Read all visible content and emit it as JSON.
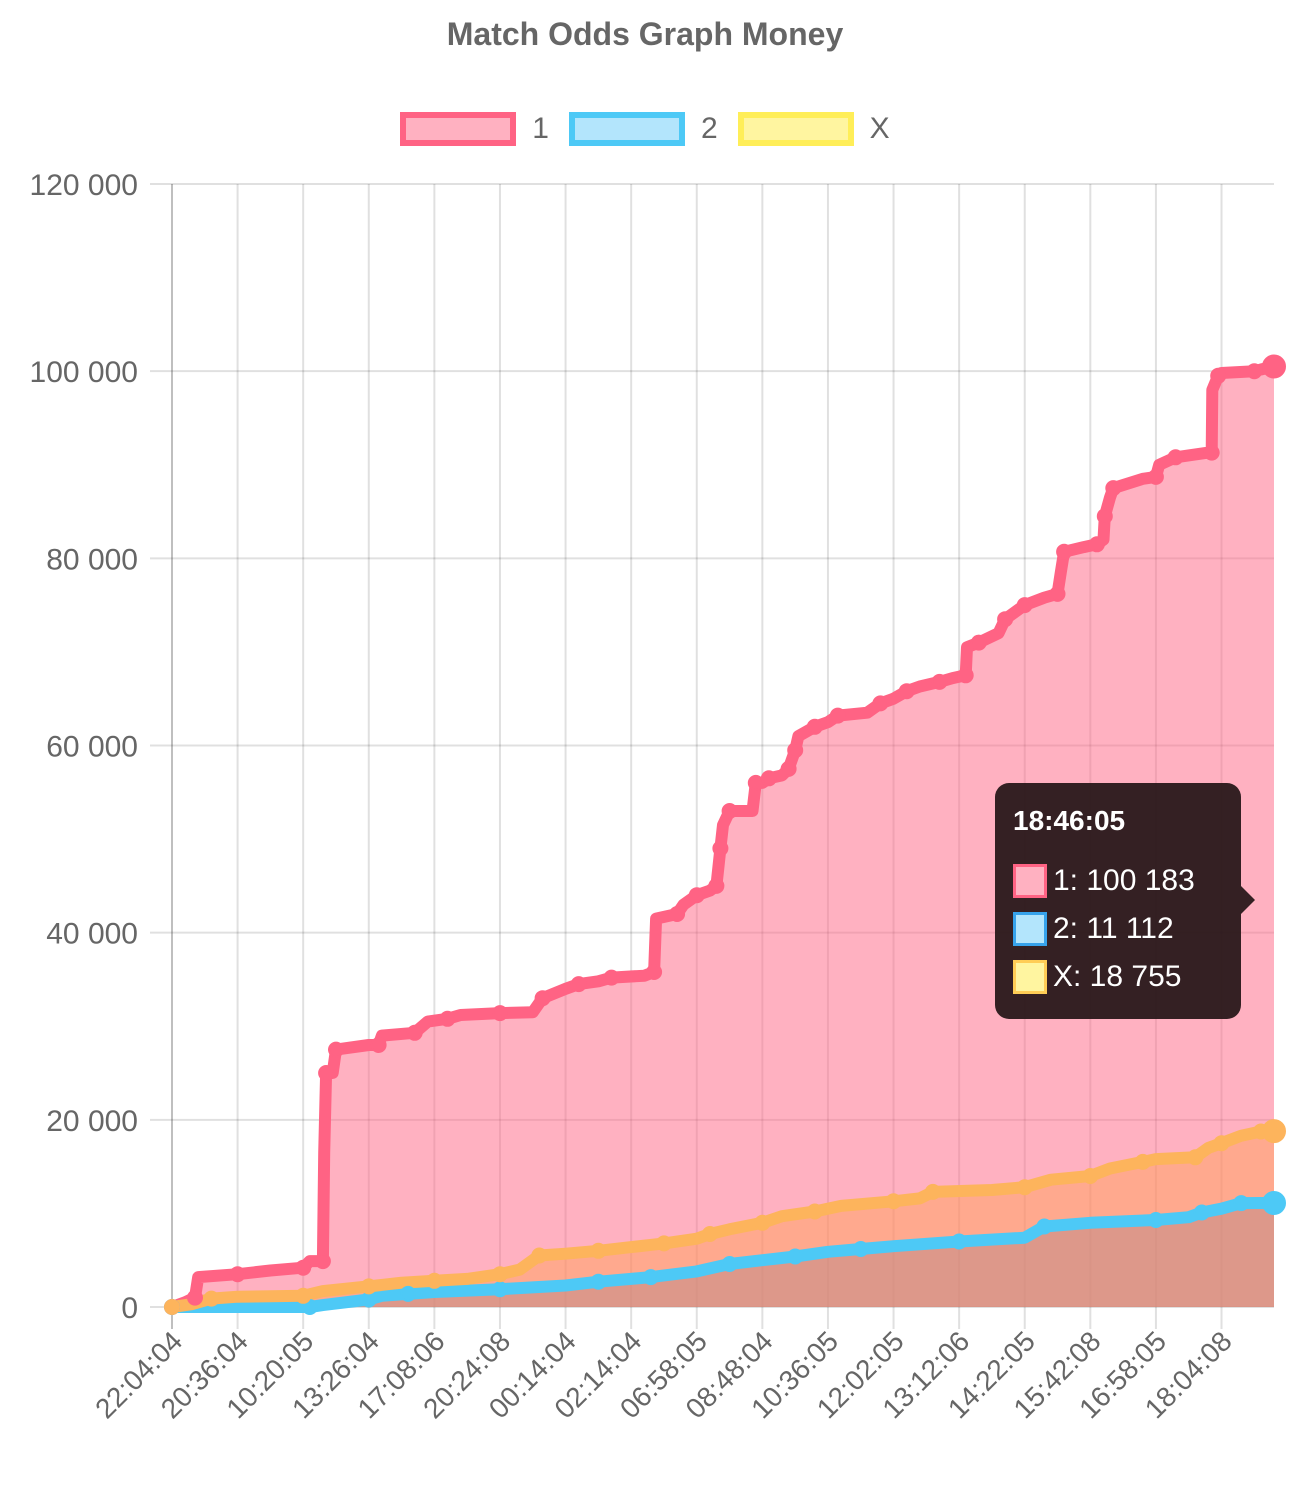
{
  "chart_data": {
    "type": "area",
    "title": "Match Odds Graph Money",
    "xlabel": "",
    "ylabel": "",
    "ylim": [
      0,
      120000
    ],
    "y_ticks": [
      0,
      20000,
      40000,
      60000,
      80000,
      100000,
      120000
    ],
    "y_tick_labels": [
      "0",
      "20 000",
      "40 000",
      "60 000",
      "80 000",
      "100 000",
      "120 000"
    ],
    "x_tick_labels": [
      "22:04:04",
      "20:36:04",
      "10:20:05",
      "13:26:04",
      "17:08:06",
      "20:24:08",
      "00:14:04",
      "02:14:04",
      "06:58:05",
      "08:48:04",
      "10:36:05",
      "12:02:05",
      "13:12:06",
      "14:22:05",
      "15:42:08",
      "16:58:05",
      "18:04:08"
    ],
    "grid": true,
    "legend_position": "top",
    "x_index_max": 16.8,
    "series": [
      {
        "name": "1",
        "border_color": "#ff6384",
        "fill_color": "#ffb1c1",
        "points": [
          [
            0,
            0
          ],
          [
            0.2,
            500
          ],
          [
            0.35,
            1000
          ],
          [
            0.4,
            3200
          ],
          [
            1.0,
            3500
          ],
          [
            1.5,
            3900
          ],
          [
            2.0,
            4200
          ],
          [
            2.1,
            4900
          ],
          [
            2.3,
            4900
          ],
          [
            2.32,
            16500
          ],
          [
            2.35,
            25000
          ],
          [
            2.45,
            25000
          ],
          [
            2.5,
            27500
          ],
          [
            3.0,
            28000
          ],
          [
            3.15,
            28000
          ],
          [
            3.2,
            29000
          ],
          [
            3.7,
            29300
          ],
          [
            3.9,
            30500
          ],
          [
            4.2,
            30800
          ],
          [
            4.4,
            31200
          ],
          [
            5.0,
            31400
          ],
          [
            5.5,
            31500
          ],
          [
            5.65,
            33000
          ],
          [
            6.0,
            34000
          ],
          [
            6.2,
            34500
          ],
          [
            6.5,
            34800
          ],
          [
            6.7,
            35200
          ],
          [
            7.2,
            35400
          ],
          [
            7.35,
            35800
          ],
          [
            7.38,
            41500
          ],
          [
            7.7,
            42000
          ],
          [
            7.8,
            43000
          ],
          [
            8.0,
            44000
          ],
          [
            8.2,
            44500
          ],
          [
            8.3,
            45000
          ],
          [
            8.33,
            47000
          ],
          [
            8.36,
            49000
          ],
          [
            8.4,
            51500
          ],
          [
            8.5,
            53000
          ],
          [
            8.85,
            53000
          ],
          [
            8.9,
            56000
          ],
          [
            9.0,
            56000
          ],
          [
            9.1,
            56500
          ],
          [
            9.3,
            56800
          ],
          [
            9.4,
            57500
          ],
          [
            9.45,
            58500
          ],
          [
            9.5,
            59500
          ],
          [
            9.55,
            61000
          ],
          [
            9.8,
            62000
          ],
          [
            10.0,
            62500
          ],
          [
            10.15,
            63200
          ],
          [
            10.6,
            63500
          ],
          [
            10.8,
            64500
          ],
          [
            11.0,
            65000
          ],
          [
            11.2,
            65800
          ],
          [
            11.4,
            66300
          ],
          [
            11.7,
            66800
          ],
          [
            11.9,
            67200
          ],
          [
            12.1,
            67500
          ],
          [
            12.12,
            70500
          ],
          [
            12.3,
            71000
          ],
          [
            12.6,
            72000
          ],
          [
            12.7,
            73500
          ],
          [
            12.9,
            74500
          ],
          [
            13.0,
            75000
          ],
          [
            13.3,
            75800
          ],
          [
            13.5,
            76200
          ],
          [
            13.55,
            78500
          ],
          [
            13.6,
            80700
          ],
          [
            13.9,
            81200
          ],
          [
            14.1,
            81500
          ],
          [
            14.2,
            82000
          ],
          [
            14.22,
            84500
          ],
          [
            14.3,
            86500
          ],
          [
            14.35,
            87500
          ],
          [
            14.8,
            88500
          ],
          [
            15.0,
            88700
          ],
          [
            15.05,
            90000
          ],
          [
            15.3,
            90800
          ],
          [
            15.8,
            91300
          ],
          [
            15.85,
            91300
          ],
          [
            15.86,
            98000
          ],
          [
            15.95,
            99500
          ],
          [
            16.0,
            99800
          ],
          [
            16.5,
            100000
          ],
          [
            16.6,
            100183
          ],
          [
            16.8,
            100500
          ]
        ]
      },
      {
        "name": "2",
        "border_color": "#36a2eb",
        "fill_color": "#9ad0f5",
        "line_color": "#4dc9f6",
        "fill_visible": "#a8a0c8",
        "points": [
          [
            0,
            0
          ],
          [
            1.5,
            0
          ],
          [
            2.1,
            0
          ],
          [
            2.3,
            200
          ],
          [
            3.0,
            800
          ],
          [
            3.2,
            1200
          ],
          [
            3.6,
            1400
          ],
          [
            4.0,
            1600
          ],
          [
            5.0,
            1900
          ],
          [
            6.0,
            2300
          ],
          [
            6.5,
            2700
          ],
          [
            7.0,
            3000
          ],
          [
            7.3,
            3200
          ],
          [
            8.0,
            3800
          ],
          [
            8.5,
            4600
          ],
          [
            9.0,
            5000
          ],
          [
            9.5,
            5400
          ],
          [
            10.0,
            5900
          ],
          [
            10.5,
            6200
          ],
          [
            11.0,
            6500
          ],
          [
            12.0,
            7000
          ],
          [
            13.0,
            7400
          ],
          [
            13.3,
            8600
          ],
          [
            14.0,
            9000
          ],
          [
            15.0,
            9300
          ],
          [
            15.5,
            9600
          ],
          [
            15.7,
            10100
          ],
          [
            16.0,
            10500
          ],
          [
            16.3,
            11100
          ],
          [
            16.6,
            11112
          ],
          [
            16.8,
            11112
          ]
        ]
      },
      {
        "name": "X",
        "border_color": "#ffcd56",
        "fill_color": "#ffe6aa",
        "line_color": "#fdb45c",
        "points": [
          [
            0,
            0
          ],
          [
            0.3,
            300
          ],
          [
            0.6,
            900
          ],
          [
            1.0,
            1100
          ],
          [
            2.0,
            1200
          ],
          [
            2.3,
            1700
          ],
          [
            3.0,
            2200
          ],
          [
            3.5,
            2600
          ],
          [
            4.0,
            2800
          ],
          [
            4.5,
            3000
          ],
          [
            5.0,
            3500
          ],
          [
            5.3,
            4000
          ],
          [
            5.6,
            5500
          ],
          [
            6.0,
            5700
          ],
          [
            6.5,
            6000
          ],
          [
            7.0,
            6400
          ],
          [
            7.5,
            6800
          ],
          [
            8.0,
            7300
          ],
          [
            8.2,
            7800
          ],
          [
            8.5,
            8300
          ],
          [
            9.0,
            9000
          ],
          [
            9.3,
            9700
          ],
          [
            9.8,
            10200
          ],
          [
            10.2,
            10800
          ],
          [
            11.0,
            11300
          ],
          [
            11.4,
            11600
          ],
          [
            11.6,
            12300
          ],
          [
            12.5,
            12500
          ],
          [
            13.0,
            12800
          ],
          [
            13.4,
            13600
          ],
          [
            14.0,
            14000
          ],
          [
            14.3,
            14800
          ],
          [
            14.8,
            15500
          ],
          [
            15.0,
            15800
          ],
          [
            15.6,
            16000
          ],
          [
            15.8,
            17000
          ],
          [
            16.0,
            17500
          ],
          [
            16.3,
            18300
          ],
          [
            16.6,
            18755
          ],
          [
            16.8,
            18800
          ]
        ]
      }
    ],
    "tooltip": {
      "title": "18:46:05",
      "rows": [
        {
          "label": "1: 100 183",
          "fill": "#ffb1c1",
          "border": "#ff6384"
        },
        {
          "label": "2: 11 112",
          "fill": "#b3e5fc",
          "border": "#36a2eb"
        },
        {
          "label": "X: 18 755",
          "fill": "#fff5a0",
          "border": "#ffcd56"
        }
      ]
    },
    "legend": [
      {
        "name": "1",
        "fill": "#ffb1c1",
        "border": "#ff6384"
      },
      {
        "name": "2",
        "fill": "#b3e5fc",
        "border": "#4dc9f6"
      },
      {
        "name": "X",
        "fill": "#fff5a0",
        "border": "#ffee58"
      }
    ]
  }
}
